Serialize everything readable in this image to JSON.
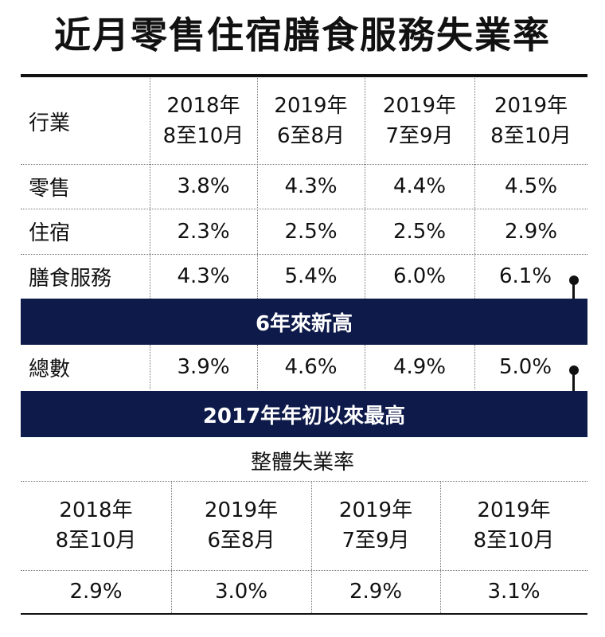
{
  "title": "近月零售住宿膳食服務失業率",
  "table": {
    "header_label": "行業",
    "periods": [
      {
        "year": "2018年",
        "months": "8至10月"
      },
      {
        "year": "2019年",
        "months": "6至8月"
      },
      {
        "year": "2019年",
        "months": "7至9月"
      },
      {
        "year": "2019年",
        "months": "8至10月"
      }
    ],
    "rows": [
      {
        "label": "零售",
        "values": [
          "3.8%",
          "4.3%",
          "4.4%",
          "4.5%"
        ]
      },
      {
        "label": "住宿",
        "values": [
          "2.3%",
          "2.5%",
          "2.5%",
          "2.9%"
        ]
      },
      {
        "label": "膳食服務",
        "values": [
          "4.3%",
          "5.4%",
          "6.0%",
          "6.1%"
        ]
      }
    ],
    "note_food": "6年來新高",
    "total": {
      "label": "總數",
      "values": [
        "3.9%",
        "4.6%",
        "4.9%",
        "5.0%"
      ]
    },
    "note_total": "2017年年初以來最高"
  },
  "overall": {
    "title": "整體失業率",
    "periods": [
      {
        "year": "2018年",
        "months": "8至10月"
      },
      {
        "year": "2019年",
        "months": "6至8月"
      },
      {
        "year": "2019年",
        "months": "7至9月"
      },
      {
        "year": "2019年",
        "months": "8至10月"
      }
    ],
    "values": [
      "2.9%",
      "3.0%",
      "2.9%",
      "3.1%"
    ]
  }
}
